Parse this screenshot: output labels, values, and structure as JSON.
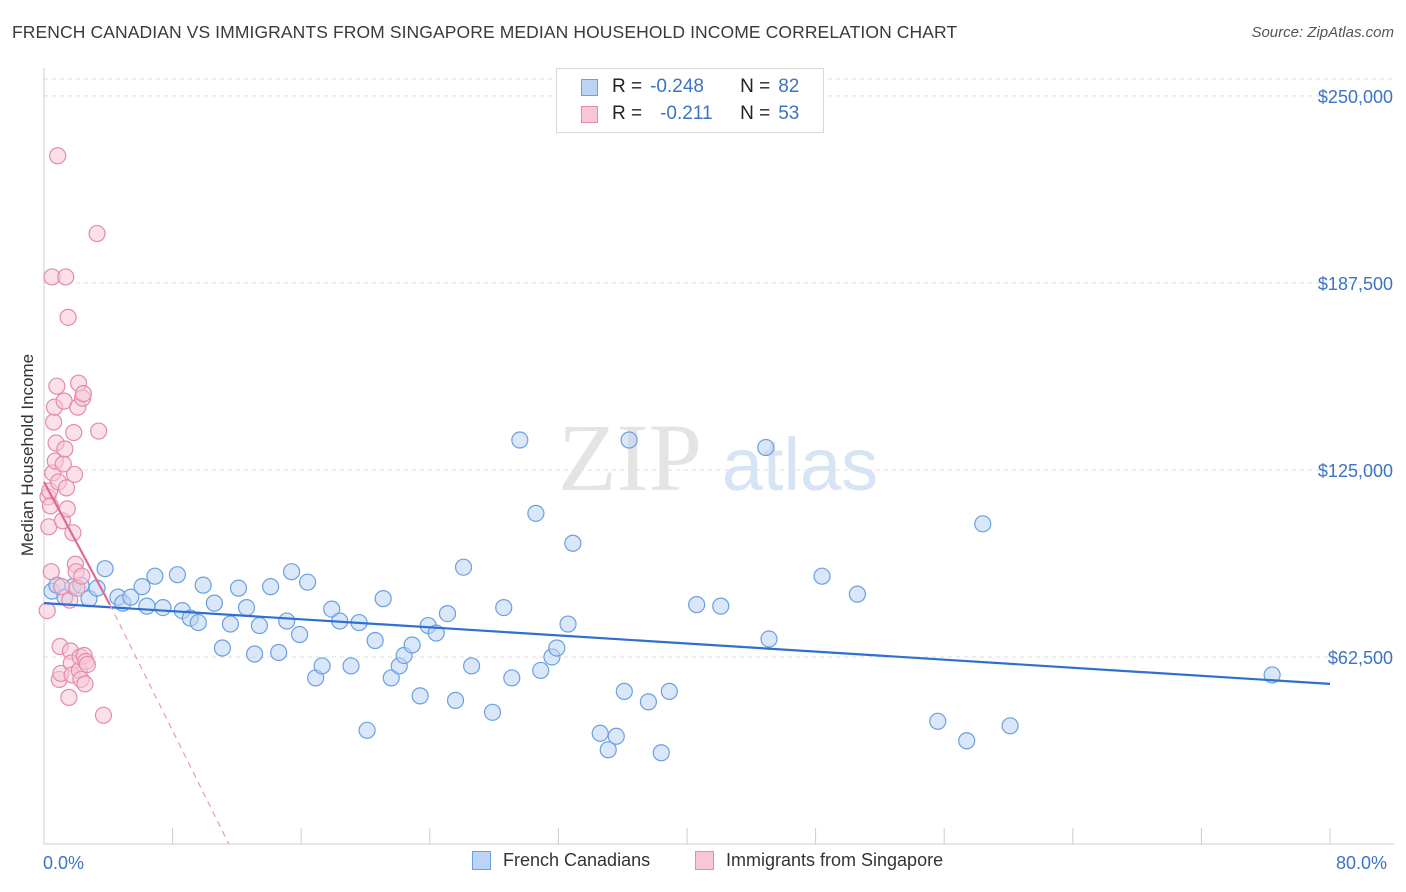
{
  "title": "FRENCH CANADIAN VS IMMIGRANTS FROM SINGAPORE MEDIAN HOUSEHOLD INCOME CORRELATION CHART",
  "source": "Source: ZipAtlas.com",
  "watermark": {
    "zip": "ZIP",
    "atlas": "atlas"
  },
  "legend": {
    "rows": [
      {
        "r_label": "R =",
        "r_value": "-0.248",
        "n_label": "N =",
        "n_value": "82",
        "color": "#6aa0e0",
        "fill": "#bcd4f4"
      },
      {
        "r_label": "R =",
        "r_value": "-0.211",
        "n_label": "N =",
        "n_value": "53",
        "color": "#e38bab",
        "fill": "#f8c7d7"
      }
    ]
  },
  "bottom_legend": {
    "series1": "French Canadians",
    "series2": "Immigrants from Singapore"
  },
  "x_axis": {
    "min_label": "0.0%",
    "max_label": "80.0%"
  },
  "chart_data": {
    "type": "scatter",
    "title": "FRENCH CANADIAN VS IMMIGRANTS FROM SINGAPORE MEDIAN HOUSEHOLD INCOME CORRELATION CHART",
    "xlabel": "",
    "ylabel": "Median Household Income",
    "xlim": [
      0,
      80
    ],
    "ylim": [
      0,
      262000
    ],
    "y_ticks": [
      {
        "value": 62500,
        "label": "$62,500"
      },
      {
        "value": 125000,
        "label": "$125,000"
      },
      {
        "value": 187500,
        "label": "$187,500"
      },
      {
        "value": 250000,
        "label": "$250,000"
      }
    ],
    "grid": true,
    "legend_position": "top-center",
    "series": [
      {
        "name": "French Canadians",
        "color": "#6aa0e0",
        "fill": "#bcd4f4",
        "trend": {
          "x": [
            0,
            80
          ],
          "y": [
            80500,
            53500
          ],
          "dashed_extension": false
        },
        "points": [
          [
            0.5,
            84500
          ],
          [
            0.8,
            86500
          ],
          [
            1.3,
            82500
          ],
          [
            1.8,
            86000
          ],
          [
            2.3,
            86500
          ],
          [
            2.8,
            82000
          ],
          [
            3.3,
            85500
          ],
          [
            3.8,
            92000
          ],
          [
            4.6,
            82500
          ],
          [
            4.9,
            80500
          ],
          [
            5.4,
            82500
          ],
          [
            6.1,
            86000
          ],
          [
            6.4,
            79500
          ],
          [
            6.9,
            89500
          ],
          [
            7.4,
            79000
          ],
          [
            8.3,
            90000
          ],
          [
            8.6,
            78000
          ],
          [
            9.1,
            75500
          ],
          [
            9.6,
            74000
          ],
          [
            9.9,
            86500
          ],
          [
            10.6,
            80500
          ],
          [
            11.1,
            65500
          ],
          [
            11.6,
            73500
          ],
          [
            12.1,
            85500
          ],
          [
            12.6,
            79000
          ],
          [
            13.1,
            63500
          ],
          [
            13.4,
            73000
          ],
          [
            14.1,
            86000
          ],
          [
            14.6,
            64000
          ],
          [
            15.1,
            74500
          ],
          [
            15.4,
            91000
          ],
          [
            15.9,
            70000
          ],
          [
            16.4,
            87500
          ],
          [
            16.9,
            55500
          ],
          [
            17.3,
            59500
          ],
          [
            17.9,
            78500
          ],
          [
            18.4,
            74500
          ],
          [
            19.1,
            59500
          ],
          [
            19.6,
            74000
          ],
          [
            20.1,
            38000
          ],
          [
            20.6,
            68000
          ],
          [
            21.1,
            82000
          ],
          [
            21.6,
            55500
          ],
          [
            22.1,
            59500
          ],
          [
            22.4,
            63000
          ],
          [
            22.9,
            66500
          ],
          [
            23.4,
            49500
          ],
          [
            23.9,
            73000
          ],
          [
            24.4,
            70500
          ],
          [
            25.1,
            77000
          ],
          [
            25.6,
            48000
          ],
          [
            26.1,
            92500
          ],
          [
            26.6,
            59500
          ],
          [
            27.9,
            44000
          ],
          [
            28.6,
            79000
          ],
          [
            29.1,
            55500
          ],
          [
            29.6,
            135000
          ],
          [
            30.6,
            110500
          ],
          [
            30.9,
            58000
          ],
          [
            31.6,
            62500
          ],
          [
            31.9,
            65500
          ],
          [
            32.6,
            73500
          ],
          [
            32.9,
            100500
          ],
          [
            34.6,
            37000
          ],
          [
            35.1,
            31500
          ],
          [
            35.6,
            36000
          ],
          [
            36.1,
            51000
          ],
          [
            36.4,
            135000
          ],
          [
            37.6,
            47500
          ],
          [
            38.4,
            30500
          ],
          [
            38.9,
            51000
          ],
          [
            40.6,
            80000
          ],
          [
            42.1,
            79500
          ],
          [
            44.9,
            132500
          ],
          [
            45.1,
            68500
          ],
          [
            48.4,
            89500
          ],
          [
            50.6,
            83500
          ],
          [
            55.6,
            41000
          ],
          [
            57.4,
            34500
          ],
          [
            58.4,
            107000
          ],
          [
            60.1,
            39500
          ],
          [
            76.4,
            56500
          ]
        ]
      },
      {
        "name": "Immigrants from Singapore",
        "color": "#e38bab",
        "fill": "#f8c7d7",
        "trend": {
          "x": [
            0,
            4.1
          ],
          "y": [
            121000,
            80000
          ],
          "dashed_to": [
            11.5,
            0
          ]
        },
        "points": [
          [
            0.2,
            78000
          ],
          [
            0.25,
            116000
          ],
          [
            0.3,
            106000
          ],
          [
            0.35,
            118000
          ],
          [
            0.4,
            113000
          ],
          [
            0.45,
            91000
          ],
          [
            0.5,
            189500
          ],
          [
            0.55,
            124000
          ],
          [
            0.6,
            141000
          ],
          [
            0.65,
            146000
          ],
          [
            0.7,
            128000
          ],
          [
            0.75,
            134000
          ],
          [
            0.8,
            153000
          ],
          [
            0.85,
            230000
          ],
          [
            0.9,
            121000
          ],
          [
            0.95,
            55000
          ],
          [
            1.0,
            66000
          ],
          [
            1.05,
            57000
          ],
          [
            1.1,
            86000
          ],
          [
            1.15,
            108000
          ],
          [
            1.2,
            127000
          ],
          [
            1.25,
            148000
          ],
          [
            1.3,
            132000
          ],
          [
            1.35,
            189500
          ],
          [
            1.4,
            119000
          ],
          [
            1.45,
            112000
          ],
          [
            1.5,
            176000
          ],
          [
            1.55,
            49000
          ],
          [
            1.6,
            81500
          ],
          [
            1.65,
            64500
          ],
          [
            1.7,
            60500
          ],
          [
            1.75,
            56500
          ],
          [
            1.8,
            104000
          ],
          [
            1.85,
            137500
          ],
          [
            1.9,
            123500
          ],
          [
            1.95,
            93500
          ],
          [
            2.0,
            91000
          ],
          [
            2.05,
            85500
          ],
          [
            2.1,
            146000
          ],
          [
            2.15,
            154000
          ],
          [
            2.2,
            58000
          ],
          [
            2.25,
            62500
          ],
          [
            2.3,
            55000
          ],
          [
            2.35,
            89500
          ],
          [
            2.4,
            149000
          ],
          [
            2.45,
            150500
          ],
          [
            2.5,
            63000
          ],
          [
            2.55,
            53500
          ],
          [
            2.6,
            61000
          ],
          [
            2.7,
            60000
          ],
          [
            3.3,
            204000
          ],
          [
            3.4,
            138000
          ],
          [
            3.7,
            43000
          ]
        ]
      }
    ]
  }
}
